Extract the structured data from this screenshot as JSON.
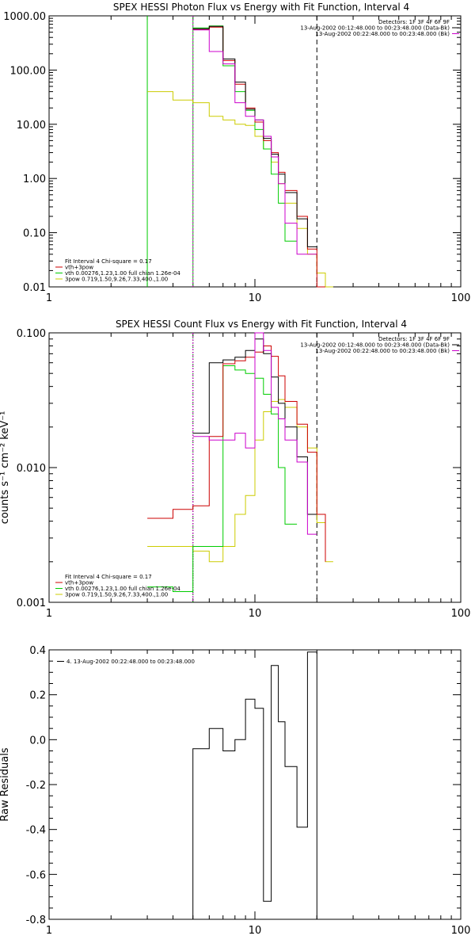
{
  "page": {
    "background": "#ffffff"
  },
  "chart_data": [
    {
      "type": "line",
      "title": "SPEX HESSI Photon Flux vs Energy with Fit Function, Interval 4",
      "xscale": "log",
      "yscale": "log",
      "xlim": [
        1,
        100
      ],
      "ylim": [
        0.01,
        1000
      ],
      "xticks": [
        {
          "v": 1,
          "label": "1"
        },
        {
          "v": 10,
          "label": "10"
        },
        {
          "v": 100,
          "label": "100"
        }
      ],
      "yticks": [
        {
          "v": 1000,
          "label": "1000.00"
        },
        {
          "v": 100,
          "label": "100.00"
        },
        {
          "v": 10,
          "label": "10.00"
        },
        {
          "v": 1,
          "label": "1.00"
        },
        {
          "v": 0.1,
          "label": "0.10"
        },
        {
          "v": 0.01,
          "label": "0.01"
        }
      ],
      "vlines": [
        {
          "x": 3,
          "color": "#00cc00",
          "dash": ""
        },
        {
          "x": 5,
          "color": "#00cc00",
          "dash": ""
        },
        {
          "x": 5,
          "color": "#cc00cc",
          "dash": "2,2"
        },
        {
          "x": 20,
          "color": "#000000",
          "dash": "6,4"
        }
      ],
      "legend_top": {
        "lines": [
          {
            "text": "Detectors: 1F 3F 4F 6F 9F",
            "color": ""
          },
          {
            "text": "13-Aug-2002 00:12:48.000 to 00:23:48.000 (Data-Bk)",
            "color": "#000000"
          },
          {
            "text": "13-Aug-2002 00:22:48.000 to 00:23:48.000 (Bk)",
            "color": "#cc00cc"
          }
        ]
      },
      "legend_bottom": {
        "lines": [
          {
            "text": "Fit Interval 4   Chi-square = 0.17",
            "color": ""
          },
          {
            "text": "vth+3pow",
            "color": "#cc0000"
          },
          {
            "text": "vth 0.00276,1.23,1.00  full chian 1.26e-04",
            "color": "#00cc00"
          },
          {
            "text": "3pow 0.719,1.50,9.26,7.33,400.,1.00",
            "color": "#cccc00"
          }
        ]
      },
      "series": [
        {
          "color": "#cccc00",
          "edges": [
            3,
            4,
            5,
            6,
            7,
            8,
            9,
            10,
            11,
            12,
            13,
            14,
            16,
            18,
            20,
            22,
            24
          ],
          "values": [
            40,
            28,
            25,
            14,
            12,
            10,
            9.5,
            6,
            3.5,
            2,
            0.8,
            0.35,
            0.12,
            0.04,
            0.018,
            0.009
          ]
        },
        {
          "color": "#00cc00",
          "edges": [
            5,
            6,
            7,
            8,
            9,
            10,
            11,
            12,
            13,
            14,
            16
          ],
          "values": [
            600,
            650,
            120,
            40,
            18,
            8,
            3.5,
            1.2,
            0.35,
            0.07
          ]
        },
        {
          "color": "#cc0000",
          "edges": [
            5,
            6,
            7,
            8,
            9,
            10,
            11,
            12,
            13,
            14,
            16,
            18,
            20,
            22
          ],
          "values": [
            560,
            620,
            150,
            55,
            20,
            11,
            5,
            3,
            1.3,
            0.6,
            0.2,
            0.05,
            0.009
          ]
        },
        {
          "color": "#000000",
          "edges": [
            5,
            6,
            7,
            8,
            9,
            10,
            11,
            12,
            13,
            14,
            16,
            18,
            20
          ],
          "values": [
            580,
            640,
            160,
            60,
            19,
            12,
            5.5,
            2.8,
            1.2,
            0.55,
            0.18,
            0.055
          ]
        },
        {
          "color": "#cc00cc",
          "edges": [
            5,
            6,
            7,
            8,
            9,
            10,
            11,
            12,
            13,
            14,
            16,
            18,
            20
          ],
          "values": [
            550,
            220,
            130,
            25,
            14,
            12,
            6,
            2.5,
            0.8,
            0.15,
            0.04,
            0.04
          ]
        }
      ]
    },
    {
      "type": "line",
      "title": "SPEX HESSI Count Flux vs Energy with Fit Function, Interval 4",
      "ylabel": "counts s⁻¹ cm⁻² keV⁻¹",
      "xscale": "log",
      "yscale": "log",
      "xlim": [
        1,
        100
      ],
      "ylim": [
        0.001,
        0.1
      ],
      "xticks": [
        {
          "v": 1,
          "label": "1"
        },
        {
          "v": 10,
          "label": "10"
        },
        {
          "v": 100,
          "label": "100"
        }
      ],
      "yticks": [
        {
          "v": 0.1,
          "label": "0.100"
        },
        {
          "v": 0.01,
          "label": "0.010"
        },
        {
          "v": 0.001,
          "label": "0.001"
        }
      ],
      "vlines": [
        {
          "x": 5,
          "color": "#000000",
          "dash": "1,2"
        },
        {
          "x": 5,
          "color": "#00cc00",
          "dash": "1,2"
        },
        {
          "x": 5,
          "color": "#cc00cc",
          "dash": "2,2"
        },
        {
          "x": 20,
          "color": "#000000",
          "dash": "6,4"
        }
      ],
      "legend_top": {
        "lines": [
          {
            "text": "Detectors: 1F 3F 4F 6F 9F",
            "color": ""
          },
          {
            "text": "13-Aug-2002 00:12:48.000 to 00:23:48.000 (Data-Bk)",
            "color": "#000000"
          },
          {
            "text": "13-Aug-2002 00:22:48.000 to 00:23:48.000 (Bk)",
            "color": "#cc00cc"
          }
        ]
      },
      "legend_bottom": {
        "lines": [
          {
            "text": "Fit Interval 4   Chi-square = 0.17",
            "color": ""
          },
          {
            "text": "vth+3pow",
            "color": "#cc0000"
          },
          {
            "text": "vth 0.00276,1.23,1.00  full chian 1.26e-04",
            "color": "#00cc00"
          },
          {
            "text": "3pow 0.719,1.50,9.26,7.33,400.,1.00",
            "color": "#cccc00"
          }
        ]
      },
      "series": [
        {
          "color": "#cccc00",
          "edges": [
            3,
            4,
            5,
            6,
            7,
            8,
            9,
            10,
            11,
            12,
            13,
            14,
            16,
            18,
            20,
            22,
            24
          ],
          "values": [
            0.0026,
            0.0026,
            0.0024,
            0.002,
            0.0026,
            0.0045,
            0.0062,
            0.016,
            0.026,
            0.031,
            0.032,
            0.028,
            0.02,
            0.014,
            0.0039,
            0.002
          ]
        },
        {
          "color": "#00cc00",
          "edges": [
            3,
            4,
            5,
            6,
            7,
            8,
            9,
            10,
            11,
            12,
            13,
            14,
            16
          ],
          "values": [
            0.0013,
            0.0012,
            0.0026,
            0.0026,
            0.057,
            0.053,
            0.05,
            0.046,
            0.035,
            0.025,
            0.01,
            0.0038
          ]
        },
        {
          "color": "#cc0000",
          "edges": [
            3,
            4,
            5,
            6,
            7,
            8,
            9,
            10,
            11,
            12,
            13,
            14,
            16,
            18,
            20,
            22
          ],
          "values": [
            0.0042,
            0.0049,
            0.0052,
            0.017,
            0.059,
            0.062,
            0.066,
            0.072,
            0.08,
            0.067,
            0.048,
            0.031,
            0.021,
            0.013,
            0.0045,
            0.002
          ]
        },
        {
          "color": "#000000",
          "edges": [
            5,
            6,
            7,
            8,
            9,
            10,
            11,
            12,
            13,
            14,
            16,
            18,
            20
          ],
          "values": [
            0.018,
            0.06,
            0.063,
            0.066,
            0.074,
            0.09,
            0.07,
            0.047,
            0.03,
            0.02,
            0.012,
            0.0045
          ]
        },
        {
          "color": "#cc00cc",
          "edges": [
            5,
            6,
            7,
            8,
            9,
            10,
            11,
            12,
            13,
            14,
            16,
            18,
            20
          ],
          "values": [
            0.017,
            0.016,
            0.016,
            0.018,
            0.014,
            0.1,
            0.074,
            0.028,
            0.023,
            0.016,
            0.011,
            0.0032
          ]
        }
      ]
    },
    {
      "type": "line",
      "ylabel": "Raw Residuals",
      "xscale": "log",
      "yscale": "linear",
      "xlim": [
        1,
        100
      ],
      "ylim": [
        -0.8,
        0.4
      ],
      "xticks": [
        {
          "v": 1,
          "label": "1"
        },
        {
          "v": 10,
          "label": "10"
        },
        {
          "v": 100,
          "label": "100"
        }
      ],
      "yticks": [
        {
          "v": 0.4,
          "label": "0.4"
        },
        {
          "v": 0.2,
          "label": "0.2"
        },
        {
          "v": 0,
          "label": "0.0"
        },
        {
          "v": -0.2,
          "label": "-0.2"
        },
        {
          "v": -0.4,
          "label": "-0.4"
        },
        {
          "v": -0.6,
          "label": "-0.6"
        },
        {
          "v": -0.8,
          "label": "-0.8"
        }
      ],
      "yminor": 0.05,
      "vlines": [],
      "legend_top_left": {
        "lines": [
          {
            "text": "4. 13-Aug-2002 00:22:48.000 to 00:23:48.000",
            "color": "#000000"
          }
        ]
      },
      "series": [
        {
          "color": "#000000",
          "edges": [
            5,
            6,
            7,
            8,
            9,
            10,
            11,
            12,
            13,
            14,
            16,
            18,
            20
          ],
          "values": [
            -0.04,
            0.05,
            -0.05,
            0.0,
            0.18,
            0.14,
            -0.72,
            0.33,
            0.08,
            -0.12,
            -0.39,
            0.39
          ],
          "closed": true
        }
      ]
    }
  ]
}
